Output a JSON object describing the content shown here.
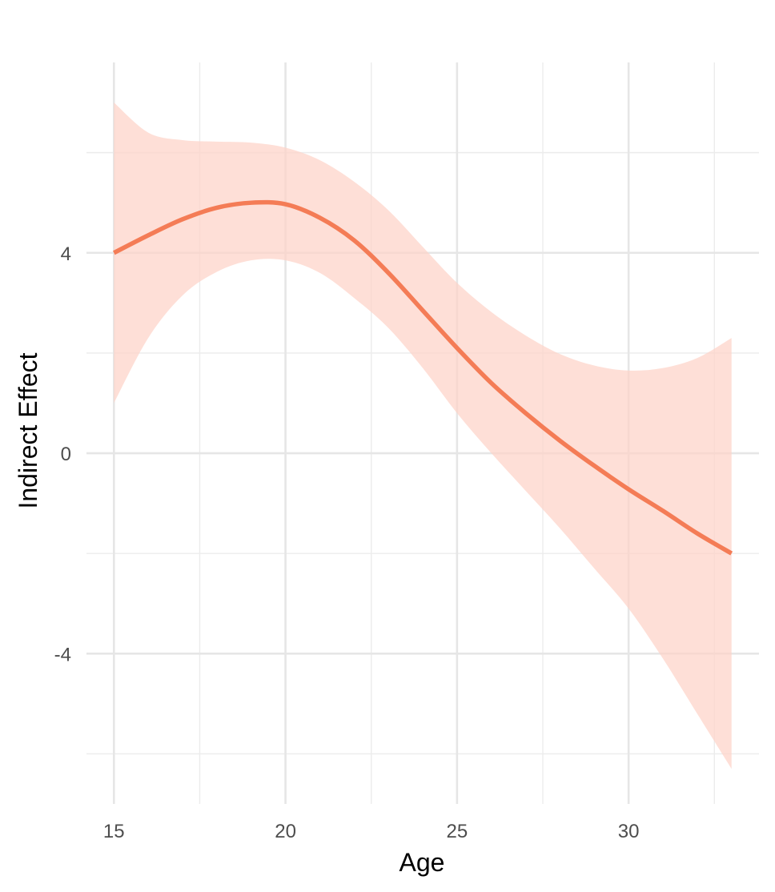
{
  "chart_data": {
    "type": "line",
    "title": "",
    "xlabel": "Age",
    "ylabel": "Indirect Effect",
    "xlim": [
      14.2,
      33.8
    ],
    "ylim": [
      -7.0,
      7.8
    ],
    "x_ticks": [
      15,
      20,
      25,
      30
    ],
    "x_minor_ticks": [
      17.5,
      22.5,
      27.5,
      32.5
    ],
    "y_ticks": [
      -4,
      0,
      4
    ],
    "y_minor_ticks": [
      -6,
      -2,
      2,
      6
    ],
    "grid": true,
    "legend": "none",
    "colors": {
      "line": "#f47c56",
      "ribbon": "#fdd3c8"
    },
    "series": [
      {
        "x": [
          15,
          16,
          17,
          18,
          19,
          20,
          21,
          22,
          23,
          24,
          25,
          26,
          27,
          28,
          29,
          30,
          31,
          32,
          33
        ],
        "y": [
          4.0,
          4.35,
          4.67,
          4.9,
          5.0,
          4.97,
          4.7,
          4.25,
          3.6,
          2.85,
          2.1,
          1.4,
          0.8,
          0.25,
          -0.25,
          -0.72,
          -1.15,
          -1.6,
          -2.0
        ],
        "lower": [
          1.0,
          2.3,
          3.15,
          3.62,
          3.85,
          3.85,
          3.6,
          3.1,
          2.5,
          1.7,
          0.8,
          0.0,
          -0.75,
          -1.5,
          -2.3,
          -3.1,
          -4.1,
          -5.2,
          -6.3
        ],
        "upper": [
          7.0,
          6.4,
          6.25,
          6.22,
          6.2,
          6.1,
          5.85,
          5.42,
          4.85,
          4.12,
          3.4,
          2.82,
          2.35,
          1.98,
          1.75,
          1.65,
          1.7,
          1.9,
          2.3
        ]
      }
    ]
  }
}
